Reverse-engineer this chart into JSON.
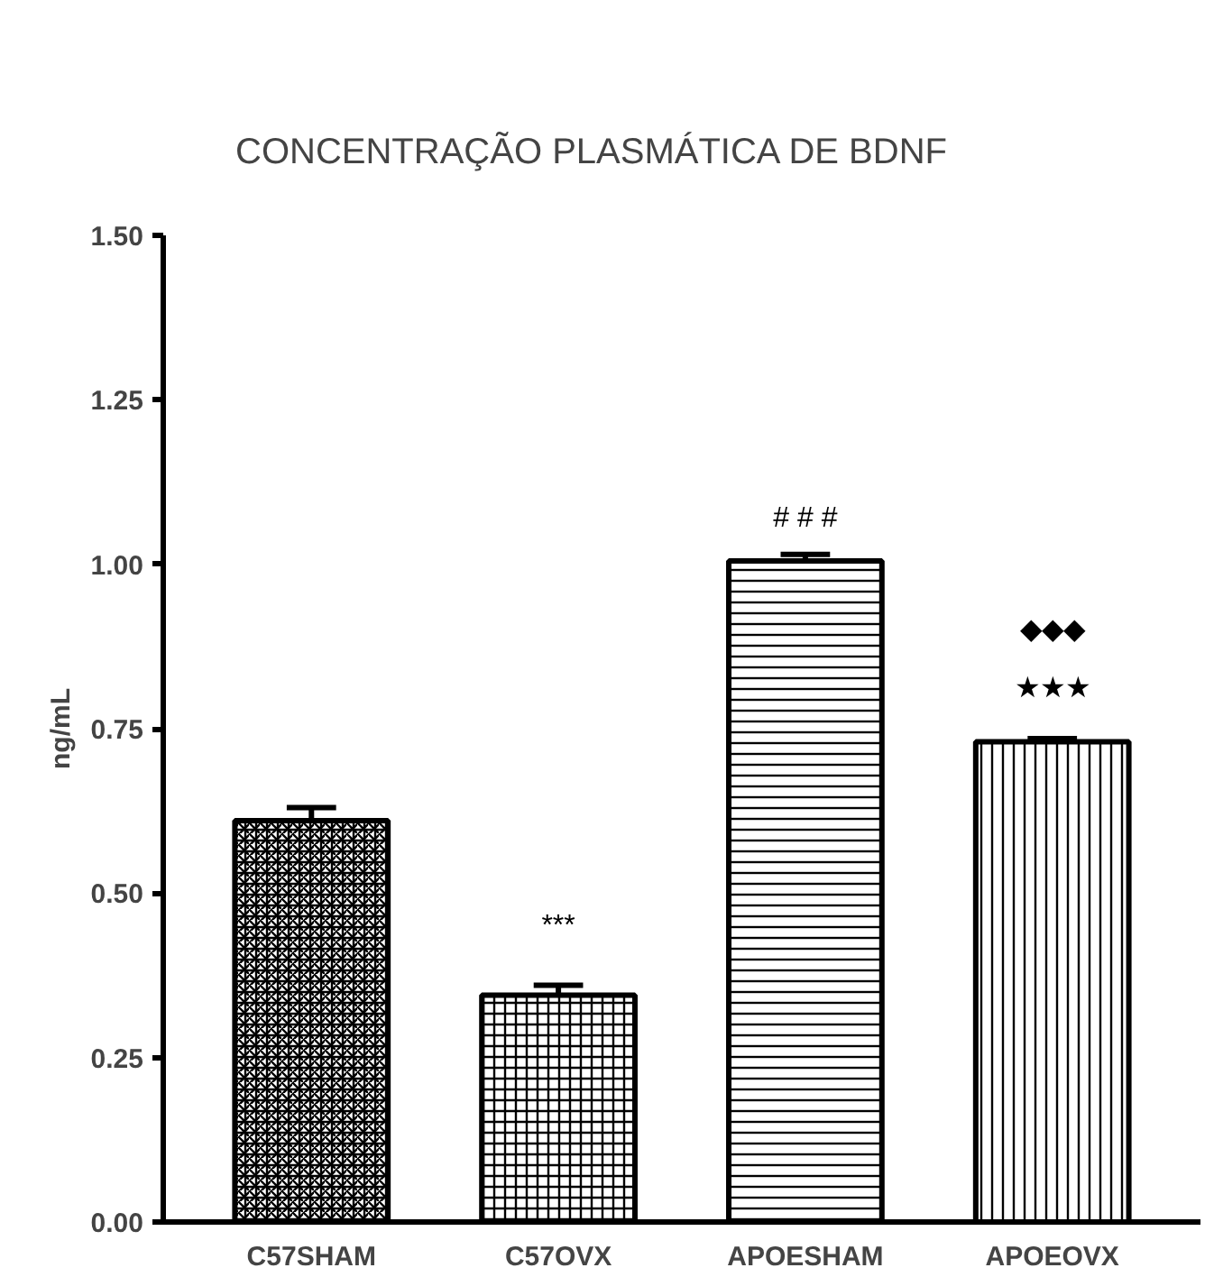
{
  "chart_data": {
    "type": "bar",
    "title": "CONCENTRAÇÃO PLASMÁTICA DE BDNF",
    "ylabel": "ng/mL",
    "categories": [
      "C57SHAM",
      "C57OVX",
      "APOESHAM",
      "APOEOVX"
    ],
    "values": [
      0.61,
      0.345,
      1.005,
      0.73
    ],
    "errors": [
      0.02,
      0.015,
      0.01,
      0.005
    ],
    "colors": [
      "#000000",
      "#000000",
      "#000000",
      "#000000"
    ],
    "ylim": [
      0,
      1.5
    ],
    "yticks": [
      {
        "value": 0,
        "label": "0.00"
      },
      {
        "value": 0.25,
        "label": "0.25"
      },
      {
        "value": 0.5,
        "label": "0.50"
      },
      {
        "value": 0.75,
        "label": "0.75"
      },
      {
        "value": 1.0,
        "label": "1.00"
      },
      {
        "value": 1.25,
        "label": "1.25"
      },
      {
        "value": 1.5,
        "label": "1.50"
      }
    ],
    "annotations": [
      "***",
      "# # #",
      "★★★",
      "◆◆◆"
    ],
    "grid": false
  }
}
